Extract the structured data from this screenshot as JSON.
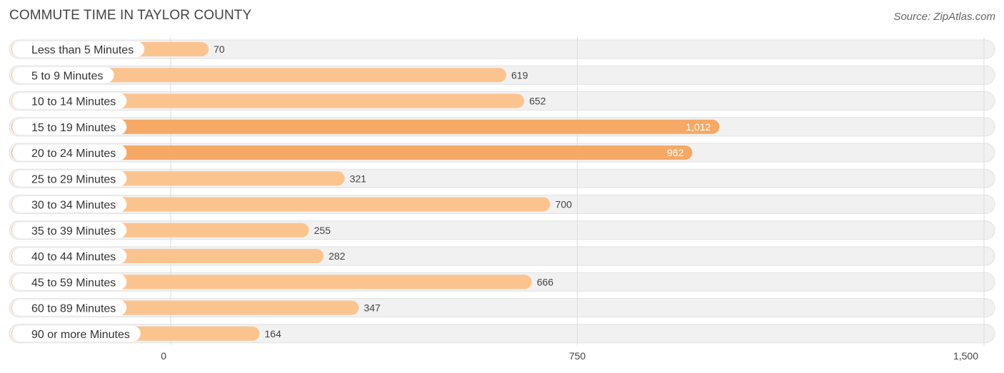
{
  "title": "COMMUTE TIME IN TAYLOR COUNTY",
  "source": "Source: ZipAtlas.com",
  "colors": {
    "bar_light": "#fbc48f",
    "bar_dark": "#f6a865",
    "track": "#f1f1f1",
    "track_border": "#e2e2e2",
    "grid": "#dddddd"
  },
  "chart_data": {
    "type": "bar",
    "orientation": "horizontal",
    "title": "COMMUTE TIME IN TAYLOR COUNTY",
    "categories": [
      "Less than 5 Minutes",
      "5 to 9 Minutes",
      "10 to 14 Minutes",
      "15 to 19 Minutes",
      "20 to 24 Minutes",
      "25 to 29 Minutes",
      "30 to 34 Minutes",
      "35 to 39 Minutes",
      "40 to 44 Minutes",
      "45 to 59 Minutes",
      "60 to 89 Minutes",
      "90 or more Minutes"
    ],
    "values": [
      70,
      619,
      652,
      1012,
      962,
      321,
      700,
      255,
      282,
      666,
      347,
      164
    ],
    "value_labels": [
      "70",
      "619",
      "652",
      "1,012",
      "962",
      "321",
      "700",
      "255",
      "282",
      "666",
      "347",
      "164"
    ],
    "xlim": [
      0,
      1500
    ],
    "ticks": [
      0,
      750,
      1500
    ],
    "tick_labels": [
      "0",
      "750",
      "1,500"
    ],
    "grid": true
  }
}
